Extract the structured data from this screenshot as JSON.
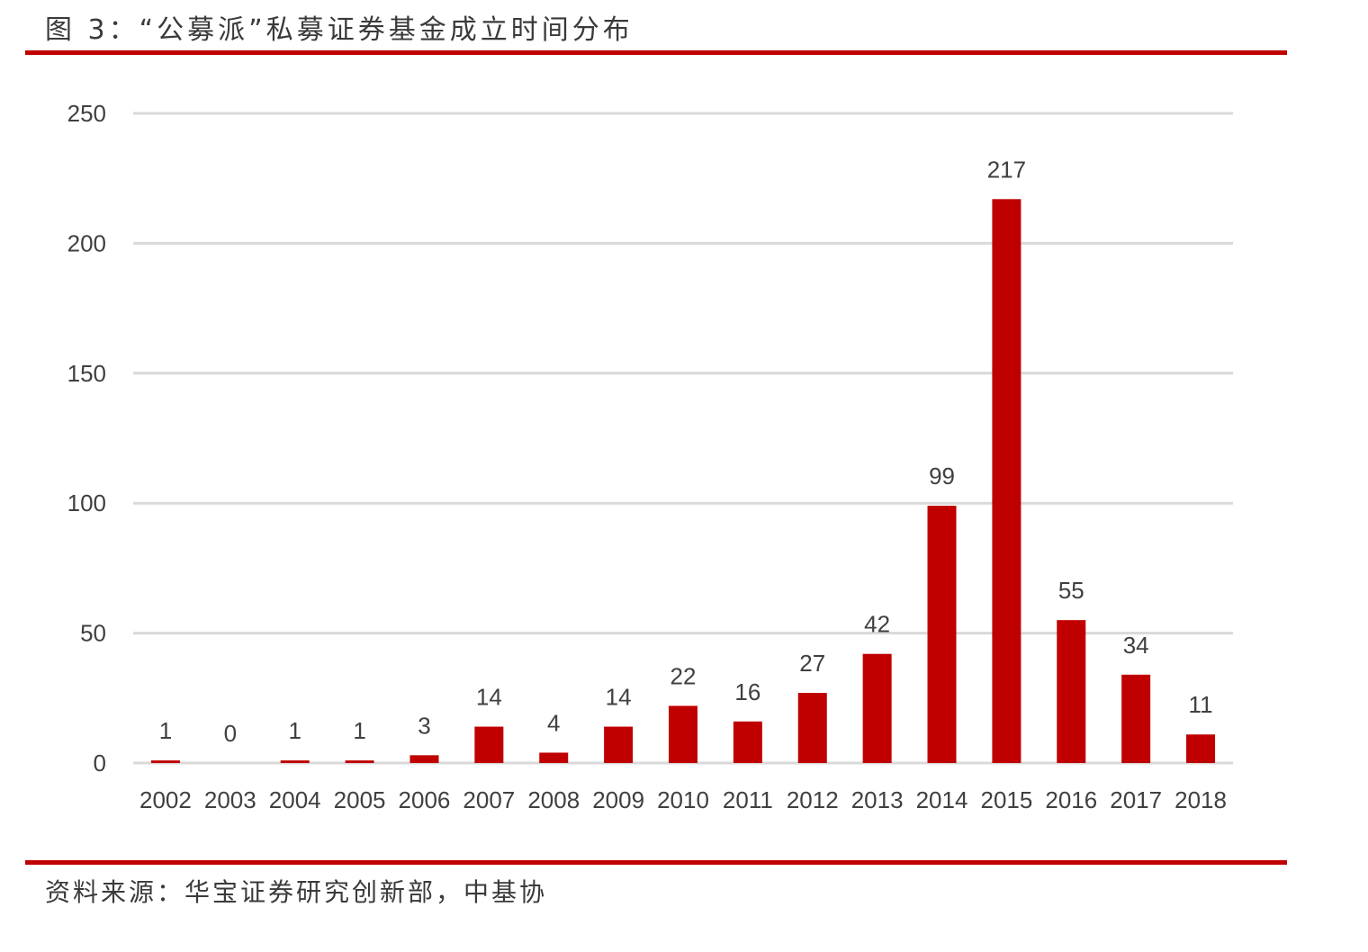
{
  "figure": {
    "title": "图 3：“公募派”私募证券基金成立时间分布",
    "source": "资料来源：华宝证券研究创新部，中基协"
  },
  "colors": {
    "bar": "#c00000",
    "rule": "#c00000",
    "grid": "#d9d9d9",
    "text": "#404040"
  },
  "chart_data": {
    "type": "bar",
    "title": "",
    "xlabel": "",
    "ylabel": "",
    "categories": [
      "2002",
      "2003",
      "2004",
      "2005",
      "2006",
      "2007",
      "2008",
      "2009",
      "2010",
      "2011",
      "2012",
      "2013",
      "2014",
      "2015",
      "2016",
      "2017",
      "2018"
    ],
    "values": [
      1,
      0,
      1,
      1,
      3,
      14,
      4,
      14,
      22,
      16,
      27,
      42,
      99,
      217,
      55,
      34,
      11
    ],
    "ylim": [
      0,
      250
    ],
    "yticks": [
      0,
      50,
      100,
      150,
      200,
      250
    ],
    "grid": true,
    "legend": "none",
    "data_labels": true
  }
}
